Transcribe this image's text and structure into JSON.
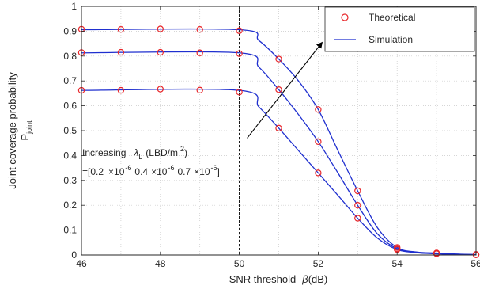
{
  "chart_data": {
    "type": "line",
    "xlabel": {
      "text": "SNR threshold",
      "symbol": "β",
      "unit": "(dB)"
    },
    "ylabel": {
      "line1": "Joint coverage probability",
      "symbol": "P",
      "subscript": "joint"
    },
    "xlim": [
      46,
      56
    ],
    "ylim": [
      0,
      1
    ],
    "xticks": [
      46,
      48,
      50,
      52,
      54,
      56
    ],
    "yticks": [
      0,
      0.1,
      0.2,
      0.3,
      0.4,
      0.5,
      0.6,
      0.7,
      0.8,
      0.9,
      1
    ],
    "ytick_labels": [
      "0",
      "0.1",
      "0.2",
      "0.3",
      "0.4",
      "0.5",
      "0.6",
      "0.7",
      "0.8",
      "0.9",
      "1"
    ],
    "grid": true,
    "vline_x": 50,
    "legend": {
      "position": "top-right",
      "items": [
        {
          "label": "Theoretical",
          "marker": "circle",
          "color": "#e8262a"
        },
        {
          "label": "Simulation",
          "line": "solid",
          "color": "#1f2fcf"
        }
      ]
    },
    "series_colors": {
      "simulation": "#1f2fcf",
      "theoretical": "#e8262a"
    },
    "theoretical_x": [
      46,
      47,
      48,
      49,
      50,
      51,
      52,
      53,
      54,
      55,
      56
    ],
    "series": [
      {
        "values": [
          0.908,
          0.907,
          0.909,
          0.907,
          0.902,
          0.788,
          0.585,
          0.258,
          0.03,
          0.008,
          0.002
        ],
        "curve_x": [
          46,
          50,
          50.5,
          51,
          51.5,
          52,
          52.5,
          53,
          53.5,
          54,
          54.5,
          55,
          55.5,
          56
        ],
        "curve_y": [
          0.906,
          0.906,
          0.862,
          0.788,
          0.7,
          0.585,
          0.42,
          0.258,
          0.11,
          0.03,
          0.012,
          0.008,
          0.004,
          0.002
        ]
      },
      {
        "values": [
          0.814,
          0.815,
          0.815,
          0.813,
          0.81,
          0.665,
          0.456,
          0.2,
          0.025,
          0.006,
          0.001
        ],
        "curve_x": [
          46,
          50,
          50.5,
          51,
          51.5,
          52,
          52.5,
          53,
          53.5,
          54,
          54.5,
          55,
          55.5,
          56
        ],
        "curve_y": [
          0.813,
          0.813,
          0.755,
          0.665,
          0.565,
          0.456,
          0.33,
          0.2,
          0.085,
          0.025,
          0.01,
          0.006,
          0.003,
          0.001
        ]
      },
      {
        "values": [
          0.662,
          0.662,
          0.667,
          0.663,
          0.655,
          0.51,
          0.33,
          0.148,
          0.022,
          0.005,
          0.001
        ],
        "curve_x": [
          46,
          50,
          50.5,
          51,
          51.5,
          52,
          52.5,
          53,
          53.5,
          54,
          54.5,
          55,
          55.5,
          56
        ],
        "curve_y": [
          0.662,
          0.662,
          0.595,
          0.51,
          0.42,
          0.33,
          0.24,
          0.148,
          0.068,
          0.022,
          0.009,
          0.005,
          0.002,
          0.001
        ]
      }
    ],
    "annotation": {
      "arrow": {
        "from": [
          50.2,
          0.47
        ],
        "to": [
          52.1,
          0.855
        ]
      },
      "line1": {
        "text": "Increasing",
        "symbol": "λ",
        "subscript": "L",
        "unit": "(LBD/m",
        "superscript": "2",
        "close": ")"
      },
      "line2": {
        "open": "=[0.2",
        "base1": "×10",
        "exp1": "-6",
        "value2": "0.4",
        "base2": "×10",
        "exp2": "-6",
        "value3": "0.7",
        "base3": "×10",
        "exp3": "-6",
        "close": "]"
      }
    }
  }
}
